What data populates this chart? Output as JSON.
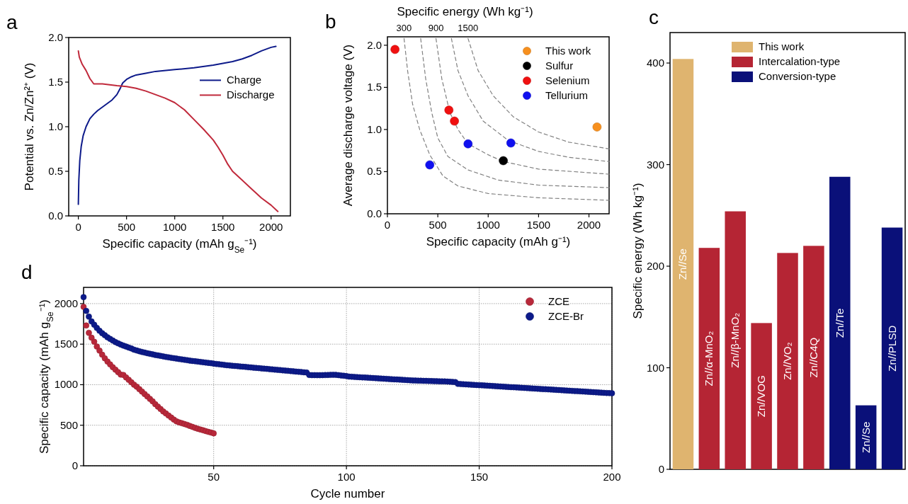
{
  "chart_data": [
    {
      "type": "line",
      "title": "a",
      "xlabel": "Specific capacity (mAh g$_{Se}$⁻¹)",
      "ylabel": "Potential vs. Zn/Zn²⁺ (V)",
      "xlim": [
        -100,
        2200
      ],
      "xticks": [
        0,
        500,
        1000,
        1500,
        2000
      ],
      "ylim": [
        0,
        2
      ],
      "yticks": [
        {
          "value": 0,
          "label": "0.0"
        },
        {
          "value": 0.5,
          "label": "0.5"
        },
        {
          "value": 1,
          "label": "1.0"
        },
        {
          "value": 1.5,
          "label": "1.5"
        },
        {
          "value": 2,
          "label": "2.0"
        }
      ],
      "legend": "right",
      "series": [
        {
          "name": "Charge",
          "color": "#0d1a8a",
          "x": [
            0,
            5,
            15,
            30,
            50,
            80,
            120,
            160,
            200,
            250,
            300,
            350,
            400,
            430,
            460,
            500,
            550,
            600,
            700,
            800,
            1000,
            1200,
            1400,
            1500,
            1600,
            1700,
            1800,
            1900,
            2000,
            2050
          ],
          "values": [
            0.13,
            0.4,
            0.62,
            0.78,
            0.9,
            1.0,
            1.09,
            1.14,
            1.18,
            1.22,
            1.26,
            1.3,
            1.36,
            1.42,
            1.49,
            1.53,
            1.56,
            1.58,
            1.6,
            1.62,
            1.64,
            1.66,
            1.69,
            1.71,
            1.73,
            1.76,
            1.8,
            1.85,
            1.89,
            1.9
          ]
        },
        {
          "name": "Discharge",
          "color": "#c0293b",
          "x": [
            0,
            10,
            40,
            80,
            120,
            160,
            180,
            250,
            400,
            500,
            600,
            700,
            800,
            900,
            1000,
            1100,
            1200,
            1300,
            1400,
            1450,
            1500,
            1550,
            1600,
            1700,
            1800,
            1900,
            2000,
            2070
          ],
          "values": [
            1.85,
            1.78,
            1.7,
            1.63,
            1.54,
            1.48,
            1.48,
            1.48,
            1.46,
            1.45,
            1.43,
            1.4,
            1.36,
            1.32,
            1.27,
            1.19,
            1.08,
            0.97,
            0.85,
            0.77,
            0.68,
            0.58,
            0.5,
            0.4,
            0.3,
            0.2,
            0.12,
            0.05
          ]
        }
      ]
    },
    {
      "type": "scatter",
      "title": "b",
      "xlabel": "Specific capacity (mAh g⁻¹)",
      "ylabel": "Average discharge voltage (V)",
      "xlim": [
        0,
        2200
      ],
      "xticks": [
        0,
        500,
        1000,
        1500,
        2000
      ],
      "ylim": [
        0,
        2.1
      ],
      "yticks": [
        {
          "value": 0,
          "label": "0.0"
        },
        {
          "value": 0.5,
          "label": "0.5"
        },
        {
          "value": 1,
          "label": "1.0"
        },
        {
          "value": 1.5,
          "label": "1.5"
        },
        {
          "value": 2,
          "label": "2.0"
        }
      ],
      "legend": "top right",
      "marker": "circle",
      "annotations": [
        "Specific energy (Wh kg⁻¹)",
        {
          "text": "300",
          "x": 165,
          "y": 2.08
        },
        {
          "text": "900",
          "x": 482,
          "y": 2.08
        },
        {
          "text": "1500",
          "x": 800,
          "y": 2.08
        }
      ],
      "series": [
        {
          "type": "line",
          "line_style": "dashed",
          "marker": "none",
          "color": "#808080",
          "x": [
            165,
            200,
            250,
            320,
            420,
            550,
            700,
            1000,
            1500,
            2200
          ],
          "values": [
            2.08,
            1.7,
            1.3,
            1.0,
            0.7,
            0.45,
            0.33,
            0.24,
            0.19,
            0.16
          ]
        },
        {
          "type": "line",
          "line_style": "dashed",
          "marker": "none",
          "color": "#808080",
          "x": [
            330,
            380,
            440,
            500,
            600,
            800,
            1100,
            1500,
            2200
          ],
          "values": [
            2.08,
            1.6,
            1.2,
            0.9,
            0.68,
            0.52,
            0.4,
            0.34,
            0.31
          ]
        },
        {
          "type": "line",
          "line_style": "dashed",
          "marker": "none",
          "color": "#808080",
          "x": [
            482,
            540,
            620,
            700,
            800,
            1000,
            1150,
            1500,
            2200
          ],
          "values": [
            2.08,
            1.6,
            1.2,
            1.0,
            0.83,
            0.7,
            0.62,
            0.53,
            0.47
          ]
        },
        {
          "type": "line",
          "line_style": "dashed",
          "marker": "none",
          "color": "#808080",
          "x": [
            635,
            700,
            800,
            950,
            1200,
            1500,
            1800,
            2200
          ],
          "values": [
            2.08,
            1.7,
            1.4,
            1.1,
            0.87,
            0.74,
            0.67,
            0.62
          ]
        },
        {
          "type": "line",
          "line_style": "dashed",
          "marker": "none",
          "color": "#808080",
          "x": [
            800,
            900,
            1050,
            1250,
            1500,
            1800,
            2200
          ],
          "values": [
            2.08,
            1.7,
            1.4,
            1.15,
            0.97,
            0.85,
            0.77
          ]
        },
        {
          "name": "This work",
          "color": "#f7901e",
          "x": [
            2080
          ],
          "values": [
            1.03
          ]
        },
        {
          "name": "Sulfur",
          "color": "#000000",
          "x": [
            1150
          ],
          "values": [
            0.63
          ]
        },
        {
          "name": "Selenium",
          "color": "#f01010",
          "x": [
            75,
            610,
            665
          ],
          "values": [
            1.95,
            1.23,
            1.1
          ]
        },
        {
          "name": "Tellurium",
          "color": "#1010f0",
          "x": [
            420,
            800,
            1225
          ],
          "values": [
            0.58,
            0.83,
            0.84
          ]
        }
      ]
    },
    {
      "type": "bar",
      "title": "c",
      "ylabel": "Specific energy (Wh kg⁻¹)",
      "stacked": true,
      "legend": "top right",
      "ylim": [
        0,
        430
      ],
      "yticks": [
        0,
        100,
        200,
        300,
        400
      ],
      "categories": [
        "Zn//Se",
        "Zn//α-MnO₂",
        "Zn//β-MnO₂",
        "Zn//VOG",
        "Zn//VO₂",
        "Zn//C4Q",
        "Zn//Te",
        "Zn//Se",
        "Zn//PLSD"
      ],
      "series": [
        {
          "name": "This work",
          "color": "#dfb46f",
          "values": [
            404,
            null,
            null,
            null,
            null,
            null,
            null,
            null,
            null
          ]
        },
        {
          "name": "Intercalation-type",
          "color": "#b52534",
          "values": [
            null,
            218,
            254,
            144,
            213,
            220,
            null,
            null,
            null
          ]
        },
        {
          "name": "Conversion-type",
          "color": "#0a1079",
          "values": [
            null,
            null,
            null,
            null,
            null,
            null,
            288,
            63,
            238
          ]
        }
      ]
    },
    {
      "type": "scatter",
      "title": "d",
      "xlabel": "Cycle number",
      "ylabel": "Specific capacity (mAh g$_{Se}$⁻¹)",
      "xlim": [
        1,
        200
      ],
      "xticks": [
        50,
        100,
        150,
        200
      ],
      "ylim": [
        0,
        2200
      ],
      "yticks": [
        0,
        500,
        1000,
        1500,
        2000
      ],
      "grid": true,
      "legend": "top right",
      "marker": "circle",
      "series": [
        {
          "name": "ZCE",
          "color": "#b8283a",
          "x": [
            1,
            2,
            3,
            4,
            5,
            6,
            7,
            8,
            9,
            10,
            11,
            12,
            13,
            14,
            15,
            16,
            17,
            18,
            19,
            20,
            21,
            22,
            23,
            24,
            25,
            26,
            27,
            28,
            29,
            30,
            31,
            32,
            33,
            34,
            35,
            36,
            37,
            38,
            39,
            40,
            41,
            42,
            43,
            44,
            45,
            46,
            47,
            48,
            49,
            50
          ],
          "values": [
            1960,
            1730,
            1640,
            1580,
            1530,
            1470,
            1420,
            1370,
            1325,
            1285,
            1250,
            1215,
            1185,
            1155,
            1125,
            1120,
            1090,
            1060,
            1030,
            1000,
            975,
            945,
            915,
            885,
            855,
            825,
            795,
            760,
            730,
            700,
            670,
            645,
            620,
            595,
            570,
            548,
            535,
            525,
            515,
            505,
            492,
            480,
            468,
            457,
            447,
            438,
            428,
            418,
            410,
            400
          ]
        },
        {
          "name": "ZCE-Br",
          "color": "#0c1a8a",
          "x": [
            1,
            2,
            3,
            4,
            5,
            6,
            7,
            8,
            9,
            10,
            11,
            12,
            13,
            14,
            15,
            16,
            17,
            18,
            19,
            20,
            21,
            22,
            23,
            24,
            25,
            26,
            27,
            28,
            29,
            30,
            31,
            32,
            33,
            34,
            35,
            36,
            37,
            38,
            39,
            40,
            41,
            42,
            43,
            44,
            45,
            46,
            47,
            48,
            49,
            50,
            51,
            52,
            53,
            54,
            55,
            56,
            57,
            58,
            59,
            60,
            61,
            62,
            63,
            64,
            65,
            66,
            67,
            68,
            69,
            70,
            71,
            72,
            73,
            74,
            75,
            76,
            77,
            78,
            79,
            80,
            81,
            82,
            83,
            84,
            85,
            86,
            87,
            88,
            89,
            90,
            91,
            92,
            93,
            94,
            95,
            96,
            97,
            98,
            99,
            100,
            101,
            102,
            103,
            104,
            105,
            106,
            107,
            108,
            109,
            110,
            111,
            112,
            113,
            114,
            115,
            116,
            117,
            118,
            119,
            120,
            121,
            122,
            123,
            124,
            125,
            126,
            127,
            128,
            129,
            130,
            131,
            132,
            133,
            134,
            135,
            136,
            137,
            138,
            139,
            140,
            141,
            142,
            143,
            144,
            145,
            146,
            147,
            148,
            149,
            150,
            151,
            152,
            153,
            154,
            155,
            156,
            157,
            158,
            159,
            160,
            161,
            162,
            163,
            164,
            165,
            166,
            167,
            168,
            169,
            170,
            171,
            172,
            173,
            174,
            175,
            176,
            177,
            178,
            179,
            180,
            181,
            182,
            183,
            184,
            185,
            186,
            187,
            188,
            189,
            190,
            191,
            192,
            193,
            194,
            195,
            196,
            197,
            198,
            199,
            200
          ],
          "values": [
            2080,
            1910,
            1840,
            1780,
            1740,
            1700,
            1665,
            1635,
            1610,
            1585,
            1565,
            1545,
            1525,
            1510,
            1495,
            1482,
            1470,
            1458,
            1447,
            1432,
            1422,
            1413,
            1404,
            1396,
            1388,
            1381,
            1374,
            1367,
            1361,
            1355,
            1349,
            1343,
            1337,
            1332,
            1327,
            1322,
            1317,
            1312,
            1307,
            1302,
            1297,
            1293,
            1289,
            1285,
            1281,
            1277,
            1273,
            1269,
            1265,
            1260,
            1256,
            1252,
            1248,
            1244,
            1240,
            1237,
            1234,
            1231,
            1228,
            1225,
            1222,
            1219,
            1216,
            1213,
            1210,
            1207,
            1204,
            1201,
            1198,
            1195,
            1192,
            1189,
            1186,
            1183,
            1180,
            1177,
            1174,
            1171,
            1168,
            1165,
            1162,
            1159,
            1156,
            1153,
            1150,
            1120,
            1118,
            1118,
            1117,
            1117,
            1118,
            1119,
            1120,
            1121,
            1122,
            1121,
            1118,
            1114,
            1110,
            1106,
            1100,
            1098,
            1096,
            1094,
            1092,
            1090,
            1088,
            1086,
            1084,
            1082,
            1080,
            1078,
            1076,
            1074,
            1072,
            1070,
            1068,
            1066,
            1064,
            1062,
            1060,
            1058,
            1056,
            1054,
            1052,
            1051,
            1050,
            1049,
            1048,
            1047,
            1046,
            1045,
            1044,
            1043,
            1042,
            1041,
            1040,
            1038,
            1036,
            1034,
            1032,
            1010,
            1008,
            1006,
            1004,
            1002,
            1000,
            998,
            996,
            994,
            992,
            990,
            988,
            986,
            984,
            982,
            980,
            978,
            976,
            974,
            972,
            970,
            968,
            966,
            964,
            962,
            960,
            958,
            956,
            954,
            952,
            950,
            948,
            946,
            944,
            942,
            940,
            938,
            936,
            934,
            932,
            930,
            928,
            926,
            924,
            922,
            920,
            918,
            916,
            914,
            912,
            910,
            908,
            906,
            904,
            902,
            900,
            898,
            896,
            894
          ]
        }
      ]
    }
  ]
}
